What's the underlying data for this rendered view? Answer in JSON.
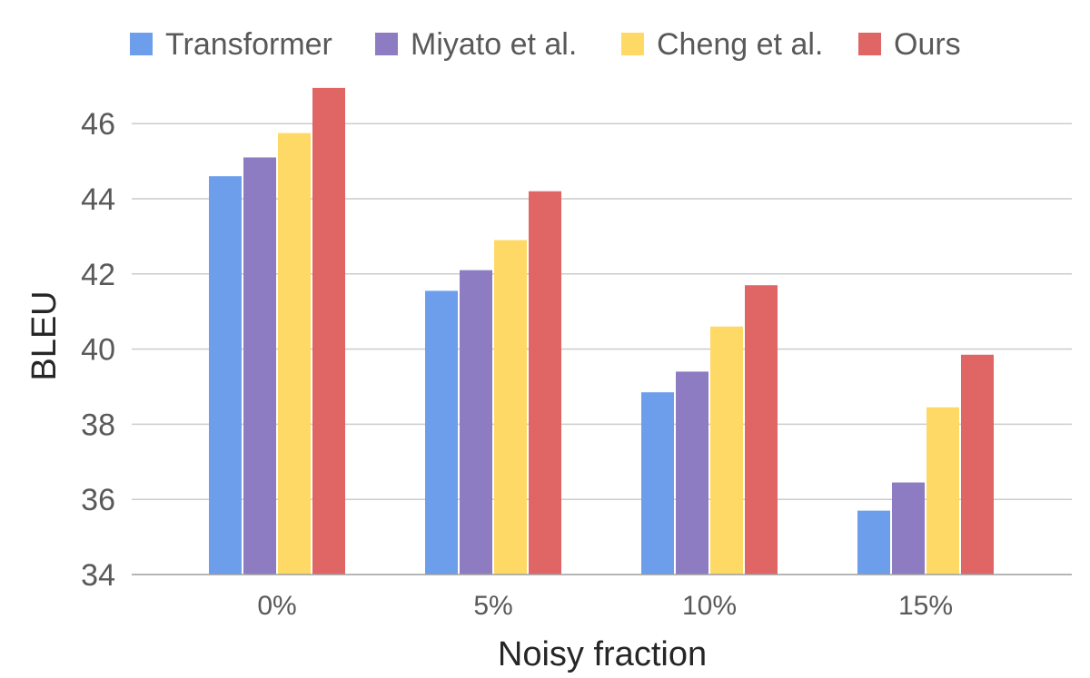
{
  "chart_data": {
    "type": "bar",
    "categories": [
      "0%",
      "5%",
      "10%",
      "15%"
    ],
    "series": [
      {
        "name": "Transformer",
        "color": "#6d9eeb",
        "values": [
          44.6,
          41.55,
          38.85,
          35.7
        ]
      },
      {
        "name": "Miyato et al.",
        "color": "#8e7cc3",
        "values": [
          45.1,
          42.1,
          39.4,
          36.45
        ]
      },
      {
        "name": "Cheng et al.",
        "color": "#ffd966",
        "values": [
          45.75,
          42.9,
          40.6,
          38.45
        ]
      },
      {
        "name": "Ours",
        "color": "#e06666",
        "values": [
          46.95,
          44.2,
          41.7,
          39.85
        ]
      }
    ],
    "title": "",
    "xlabel": "Noisy fraction",
    "ylabel": "BLEU",
    "ylim": [
      34,
      47.5
    ],
    "yticks": [
      "34",
      "36",
      "38",
      "40",
      "42",
      "44",
      "46"
    ],
    "grid": true,
    "legend_position": "top"
  }
}
